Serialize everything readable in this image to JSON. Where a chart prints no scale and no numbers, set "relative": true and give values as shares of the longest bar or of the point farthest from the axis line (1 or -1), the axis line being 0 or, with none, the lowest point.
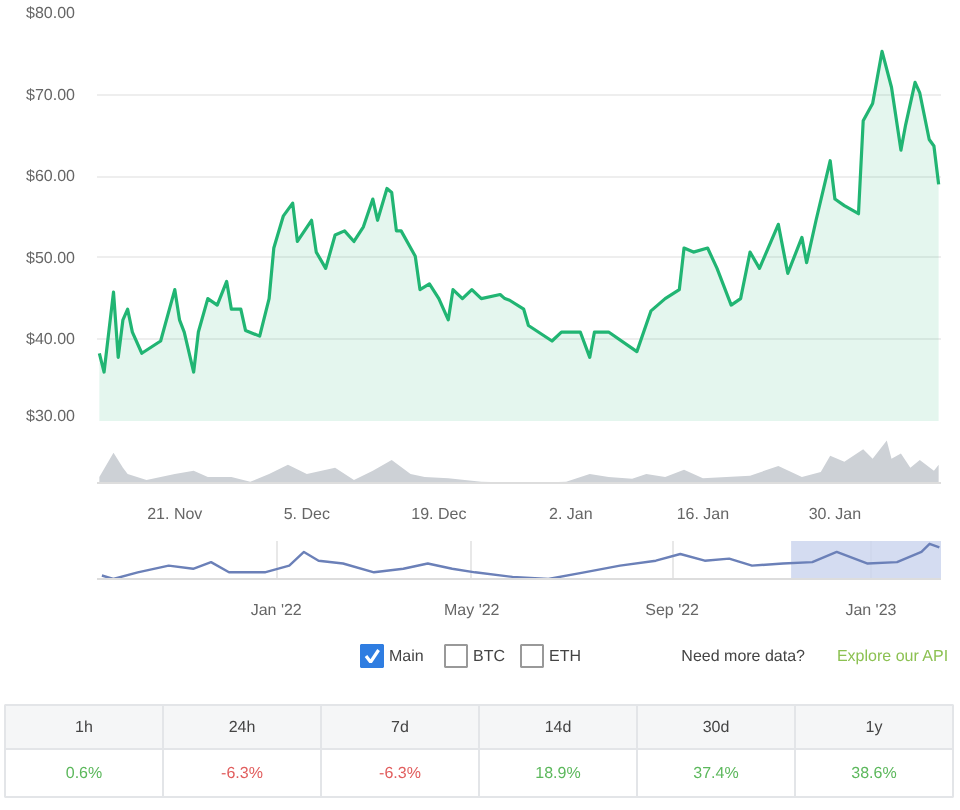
{
  "chart_data": [
    {
      "type": "area",
      "xlim": [
        "2022-11-12T18:00",
        "2023-02-10T06:00"
      ],
      "ylim": [
        30,
        80
      ],
      "yticks": [
        {
          "value": 30,
          "label": "$30.00"
        },
        {
          "value": 40,
          "label": "$40.00"
        },
        {
          "value": 50,
          "label": "$50.00"
        },
        {
          "value": 60,
          "label": "$60.00"
        },
        {
          "value": 70,
          "label": "$70.00"
        },
        {
          "value": 80,
          "label": "$80.00"
        }
      ],
      "grid": "y",
      "tick_labels": "y",
      "x": [
        "2022-11-13",
        "2022-11-13T12:00",
        "2022-11-14T12:00",
        "2022-11-15",
        "2022-11-15T12:00",
        "2022-11-16",
        "2022-11-16T12:00",
        "2022-11-17T12:00",
        "2022-11-19T12:00",
        "2022-11-21",
        "2022-11-21T12:00",
        "2022-11-22",
        "2022-11-23",
        "2022-11-23T12:00",
        "2022-11-24T12:00",
        "2022-11-25T12:00",
        "2022-11-26T12:00",
        "2022-11-27",
        "2022-11-28",
        "2022-11-28T12:00",
        "2022-11-30",
        "2022-12-01",
        "2022-12-01T12:00",
        "2022-12-02T12:00",
        "2022-12-03T12:00",
        "2022-12-04",
        "2022-12-05T12:00",
        "2022-12-06",
        "2022-12-07",
        "2022-12-08",
        "2022-12-09",
        "2022-12-10",
        "2022-12-11",
        "2022-12-12",
        "2022-12-12T12:00",
        "2022-12-13T12:00",
        "2022-12-14",
        "2022-12-14T12:00",
        "2022-12-15",
        "2022-12-16T12:00",
        "2022-12-17",
        "2022-12-18",
        "2022-12-19",
        "2022-12-20",
        "2022-12-20T12:00",
        "2022-12-21T12:00",
        "2022-12-22T12:00",
        "2022-12-23T12:00",
        "2022-12-25T12:00",
        "2022-12-26",
        "2022-12-26T12:00",
        "2022-12-28",
        "2022-12-28T12:00",
        "2022-12-31",
        "2023-01-01",
        "2023-01-03",
        "2023-01-04",
        "2023-01-04T12:00",
        "2023-01-06",
        "2023-01-09",
        "2023-01-10T12:00",
        "2023-01-12",
        "2023-01-13T12:00",
        "2023-01-14",
        "2023-01-15",
        "2023-01-16T12:00",
        "2023-01-17T12:00",
        "2023-01-19",
        "2023-01-20",
        "2023-01-21",
        "2023-01-22",
        "2023-01-24",
        "2023-01-25",
        "2023-01-26T12:00",
        "2023-01-27",
        "2023-01-28",
        "2023-01-29T12:00",
        "2023-01-30",
        "2023-01-31",
        "2023-02-01T12:00",
        "2023-02-02",
        "2023-02-03",
        "2023-02-04",
        "2023-02-05",
        "2023-02-06",
        "2023-02-06T12:00",
        "2023-02-07T12:00",
        "2023-02-08",
        "2023-02-09",
        "2023-02-09T12:00",
        "2023-02-10"
      ],
      "series": [
        {
          "color": "#21b573",
          "values": [
            38.3,
            36.0,
            45.8,
            37.8,
            42.4,
            43.7,
            40.9,
            38.3,
            39.8,
            46.1,
            42.4,
            40.9,
            36.0,
            40.9,
            45.0,
            44.2,
            47.1,
            43.7,
            43.7,
            41.1,
            40.4,
            45.0,
            51.2,
            55.1,
            56.7,
            52.0,
            54.6,
            50.7,
            48.7,
            52.8,
            53.3,
            52.0,
            53.8,
            57.2,
            54.6,
            58.5,
            58.0,
            53.3,
            53.3,
            50.2,
            46.1,
            46.8,
            45.0,
            42.4,
            46.1,
            45.0,
            46.1,
            45.0,
            45.5,
            45.0,
            44.8,
            43.7,
            41.7,
            39.8,
            40.9,
            40.9,
            37.8,
            40.9,
            40.9,
            38.5,
            43.5,
            45.0,
            46.1,
            51.2,
            50.7,
            51.2,
            48.7,
            44.2,
            45.0,
            50.7,
            48.7,
            54.1,
            48.1,
            52.5,
            49.4,
            54.6,
            61.9,
            57.2,
            56.4,
            55.4,
            66.8,
            68.9,
            75.3,
            70.9,
            63.2,
            66.3,
            71.5,
            70.2,
            64.5,
            63.7,
            59.0
          ]
        }
      ]
    },
    {
      "type": "area",
      "relative": true,
      "xlim": [
        "2022-11-12T18:00",
        "2023-02-10T06:00"
      ],
      "tick_labels": "x",
      "xticks": [
        {
          "value": "2022-11-21",
          "label": "21. Nov"
        },
        {
          "value": "2022-12-05",
          "label": "5. Dec"
        },
        {
          "value": "2022-12-19",
          "label": "19. Dec"
        },
        {
          "value": "2023-01-02",
          "label": "2. Jan"
        },
        {
          "value": "2023-01-16",
          "label": "16. Jan"
        },
        {
          "value": "2023-01-30",
          "label": "30. Jan"
        }
      ],
      "x": [
        "2022-11-13",
        "2022-11-14T12:00",
        "2022-11-15T12:00",
        "2022-11-16",
        "2022-11-18",
        "2022-11-21",
        "2022-11-23",
        "2022-11-24T12:00",
        "2022-11-27",
        "2022-11-29",
        "2022-12-01",
        "2022-12-03",
        "2022-12-05",
        "2022-12-08",
        "2022-12-10",
        "2022-12-12",
        "2022-12-14",
        "2022-12-16",
        "2022-12-17T12:00",
        "2022-12-20",
        "2022-12-23T12:00",
        "2022-12-28",
        "2023-01-01T12:00",
        "2023-01-04",
        "2023-01-06",
        "2023-01-08T12:00",
        "2023-01-10",
        "2023-01-12",
        "2023-01-14",
        "2023-01-16",
        "2023-01-21",
        "2023-01-24",
        "2023-01-26T12:00",
        "2023-01-28T12:00",
        "2023-01-29T12:00",
        "2023-01-31",
        "2023-02-02",
        "2023-02-03",
        "2023-02-04T12:00",
        "2023-02-05",
        "2023-02-06",
        "2023-02-07",
        "2023-02-08",
        "2023-02-09T12:00",
        "2023-02-10"
      ],
      "series": [
        {
          "color": "#cdd1d6",
          "values": [
            0.14,
            0.71,
            0.36,
            0.21,
            0.07,
            0.21,
            0.29,
            0.14,
            0.14,
            0.03,
            0.21,
            0.43,
            0.21,
            0.36,
            0.07,
            0.29,
            0.54,
            0.21,
            0.14,
            0.11,
            0.03,
            0,
            0.03,
            0.21,
            0.14,
            0.1,
            0.21,
            0.14,
            0.31,
            0.11,
            0.17,
            0.4,
            0.14,
            0.26,
            0.64,
            0.5,
            0.79,
            0.57,
            1,
            0.57,
            0.69,
            0.36,
            0.54,
            0.29,
            0.43
          ]
        }
      ]
    },
    {
      "type": "line",
      "relative": true,
      "xlim": [
        "2021-09-13",
        "2023-02-13"
      ],
      "tick_labels": "x",
      "grid": "x",
      "xticks": [
        {
          "value": "2022-01-01",
          "label": "Jan '22"
        },
        {
          "value": "2022-05-01",
          "label": "May '22"
        },
        {
          "value": "2022-09-01",
          "label": "Sep '22"
        },
        {
          "value": "2023-01-01",
          "label": "Jan '23"
        }
      ],
      "bands": [
        {
          "axis": "x",
          "from": "2022-11-13",
          "to": "2023-02-13",
          "color": "#c9d3ee"
        }
      ],
      "x": [
        "2021-09-16",
        "2021-09-23",
        "2021-10-08",
        "2021-10-27",
        "2021-11-11",
        "2021-11-22",
        "2021-12-03",
        "2021-12-25",
        "2022-01-09",
        "2022-01-18",
        "2022-01-27",
        "2022-02-11",
        "2022-03-02",
        "2022-03-20",
        "2022-04-04",
        "2022-04-19",
        "2022-05-03",
        "2022-05-26",
        "2022-06-17",
        "2022-07-09",
        "2022-07-31",
        "2022-08-22",
        "2022-09-06",
        "2022-09-21",
        "2022-10-06",
        "2022-10-20",
        "2022-11-08",
        "2022-11-26",
        "2022-12-11",
        "2022-12-30",
        "2023-01-17",
        "2023-02-01",
        "2023-02-06",
        "2023-02-12"
      ],
      "series": [
        {
          "color": "#6b80b8",
          "values": [
            0.1,
            0,
            0.19,
            0.38,
            0.29,
            0.48,
            0.19,
            0.19,
            0.38,
            0.77,
            0.52,
            0.44,
            0.19,
            0.29,
            0.44,
            0.29,
            0.19,
            0.06,
            0,
            0.19,
            0.38,
            0.52,
            0.71,
            0.52,
            0.58,
            0.38,
            0.44,
            0.48,
            0.77,
            0.44,
            0.48,
            0.77,
            1,
            0.9
          ]
        }
      ]
    },
    {
      "type": "other",
      "categories": [
        "1h",
        "24h",
        "7d",
        "14d",
        "30d",
        "1y"
      ],
      "values": [
        0.6,
        -6.3,
        -6.3,
        18.9,
        37.4,
        38.6
      ],
      "value_labels": [
        "0.6%",
        "-6.3%",
        "-6.3%",
        "18.9%",
        "37.4%",
        "38.6%"
      ],
      "annotations": [
        "Main",
        "BTC",
        "ETH",
        "Need more data?",
        "Explore our API"
      ]
    }
  ]
}
